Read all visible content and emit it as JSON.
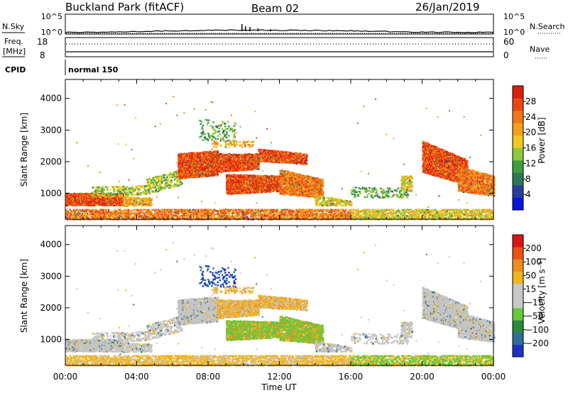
{
  "header": {
    "station": "Buckland Park (fitACF)",
    "beam": "Beam 02",
    "date": "26/Jan/2019"
  },
  "aux_panels": {
    "nsky_label": "N.Sky",
    "nsearch_label": "N.Search",
    "noise_ticks_left": [
      "10^5",
      "10^0"
    ],
    "noise_ticks_right": [
      "10^5",
      "10^0"
    ],
    "freq_label_1": "Freq.",
    "freq_label_2": "[MHz]",
    "freq_ticks": [
      "18",
      "8"
    ],
    "nave_label": "Nave",
    "nave_ticks": [
      "60",
      "0"
    ],
    "cpid_label": "CPID",
    "cpid_value": "normal 150"
  },
  "chart_data": [
    {
      "type": "heatmap",
      "panel": "power",
      "ylabel": "Slant Range [km]",
      "yticks": [
        "1000",
        "2000",
        "3000",
        "4000"
      ],
      "ylim": [
        180,
        4600
      ],
      "x": [
        "00:00",
        "04:00",
        "08:00",
        "12:00",
        "16:00",
        "20:00",
        "00:00"
      ],
      "xlim_hours": [
        0,
        24
      ],
      "colorbar": {
        "label": "Power [dB]",
        "ticks": [
          "4",
          "8",
          "12",
          "16",
          "20",
          "24",
          "28"
        ],
        "colors": [
          "#0a14e0",
          "#2a3d9a",
          "#2a7a5a",
          "#3da03d",
          "#8cc83c",
          "#f0c81e",
          "#f5a01e",
          "#f07814",
          "#eb4614",
          "#dc1e0a"
        ]
      }
    },
    {
      "type": "heatmap",
      "panel": "velocity",
      "ylabel": "Slant Range [km]",
      "yticks": [
        "1000",
        "2000",
        "3000",
        "4000"
      ],
      "ylim": [
        180,
        4600
      ],
      "x": [
        "00:00",
        "04:00",
        "08:00",
        "12:00",
        "16:00",
        "20:00",
        "00:00"
      ],
      "xlim_hours": [
        0,
        24
      ],
      "xlabel": "Time UT",
      "colorbar": {
        "label": "Velocity [m s⁻¹]",
        "ticks": [
          "200",
          "100",
          "50",
          "15",
          "−15",
          "−50",
          "−100",
          "−200"
        ],
        "colors": [
          "#1e32c8",
          "#2d6e9a",
          "#2a8a3a",
          "#64c83c",
          "#c8c8c8",
          "#c8c8c8",
          "#f0b41e",
          "#f08c1e",
          "#eb5014",
          "#dc1414"
        ]
      }
    }
  ],
  "colors": {
    "frame": "#000000",
    "background": "#ffffff",
    "gray_scatter": "#c4c4c4"
  }
}
